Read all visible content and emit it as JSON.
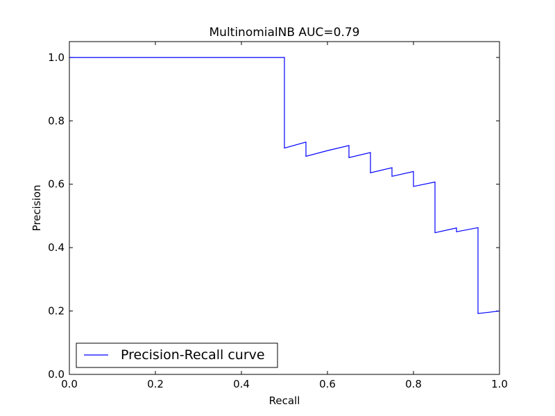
{
  "chart_data": {
    "type": "line",
    "title": "MultinomialNB AUC=0.79",
    "xlabel": "Recall",
    "ylabel": "Precision",
    "xlim": [
      0.0,
      1.0
    ],
    "ylim": [
      0.0,
      1.05
    ],
    "x_ticks": [
      "0.0",
      "0.2",
      "0.4",
      "0.6",
      "0.8",
      "1.0"
    ],
    "y_ticks": [
      "0.0",
      "0.2",
      "0.4",
      "0.6",
      "0.8",
      "1.0"
    ],
    "grid": false,
    "legend_position": "lower-left",
    "series": [
      {
        "name": "Precision-Recall curve",
        "color": "#0000ff",
        "x": [
          0.0,
          0.5,
          0.5,
          0.55,
          0.55,
          0.6,
          0.65,
          0.65,
          0.7,
          0.7,
          0.75,
          0.75,
          0.8,
          0.8,
          0.85,
          0.85,
          0.9,
          0.9,
          0.95,
          0.95,
          1.0
        ],
        "y": [
          1.0,
          1.0,
          0.714,
          0.733,
          0.688,
          0.706,
          0.722,
          0.684,
          0.7,
          0.636,
          0.652,
          0.625,
          0.64,
          0.593,
          0.607,
          0.447,
          0.462,
          0.45,
          0.463,
          0.192,
          0.2
        ]
      }
    ]
  }
}
